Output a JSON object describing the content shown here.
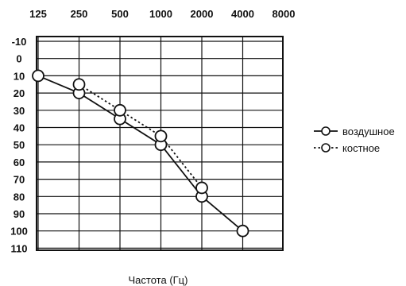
{
  "chart_data": {
    "type": "line",
    "title": "",
    "xlabel": "Частота (Гц)",
    "ylabel": "",
    "x_ticks": [
      "125",
      "250",
      "500",
      "1000",
      "2000",
      "4000",
      "8000"
    ],
    "y_ticks": [
      "-10",
      "0",
      "10",
      "20",
      "30",
      "40",
      "50",
      "60",
      "70",
      "80",
      "90",
      "100",
      "110"
    ],
    "ylim": [
      -10,
      110
    ],
    "y_inverted": true,
    "x_scale": "log2",
    "grid": true,
    "legend_position": "right",
    "series": [
      {
        "name": "воздушное",
        "line_style": "solid",
        "marker": "open-circle",
        "x": [
          125,
          250,
          500,
          1000,
          2000,
          4000
        ],
        "y": [
          10,
          20,
          35,
          50,
          80,
          100
        ]
      },
      {
        "name": "костное",
        "line_style": "dotted",
        "marker": "open-circle",
        "x": [
          250,
          500,
          1000,
          2000
        ],
        "y": [
          15,
          30,
          45,
          75
        ]
      }
    ]
  }
}
